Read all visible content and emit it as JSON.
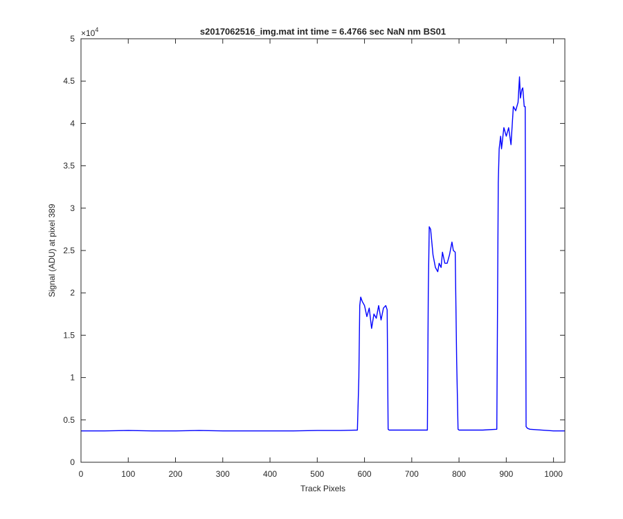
{
  "chart_data": {
    "type": "line",
    "title": "s2017062516_img.mat int time = 6.4766 sec  NaN nm BS01",
    "xlabel": "Track Pixels",
    "ylabel": "Signal (ADU) at pixel 389",
    "xlim": [
      0,
      1024
    ],
    "ylim": [
      0,
      50000
    ],
    "xticks": [
      0,
      100,
      200,
      300,
      400,
      500,
      600,
      700,
      800,
      900,
      1000
    ],
    "yticks": [
      0,
      5000,
      10000,
      15000,
      20000,
      25000,
      30000,
      35000,
      40000,
      45000,
      50000
    ],
    "ytick_labels": [
      "0",
      "0.5",
      "1",
      "1.5",
      "2",
      "2.5",
      "3",
      "3.5",
      "4",
      "4.5",
      "5"
    ],
    "y_exponent_base": "×10",
    "y_exponent_power": "4",
    "grid": false,
    "line_color": "#0000ff",
    "series": [
      {
        "x": [
          0,
          50,
          100,
          150,
          200,
          250,
          300,
          350,
          400,
          450,
          500,
          550,
          585,
          588,
          590,
          592,
          595,
          600,
          605,
          610,
          615,
          620,
          625,
          630,
          635,
          640,
          645,
          648,
          650,
          652,
          655,
          660,
          700,
          733,
          735,
          737,
          740,
          745,
          750,
          755,
          758,
          762,
          765,
          770,
          775,
          780,
          785,
          788,
          792,
          795,
          798,
          800,
          850,
          880,
          883,
          885,
          888,
          890,
          895,
          900,
          905,
          910,
          915,
          920,
          925,
          928,
          930,
          933,
          935,
          938,
          940,
          942,
          945,
          950,
          1000,
          1024
        ],
        "y": [
          3700,
          3700,
          3750,
          3700,
          3700,
          3750,
          3700,
          3700,
          3700,
          3700,
          3750,
          3750,
          3800,
          10000,
          18500,
          19500,
          19000,
          18500,
          17200,
          18200,
          15800,
          17500,
          17000,
          18500,
          16800,
          18200,
          18500,
          18000,
          3900,
          3800,
          3800,
          3800,
          3800,
          3800,
          20000,
          27800,
          27500,
          24500,
          23000,
          22500,
          23500,
          23000,
          24800,
          23500,
          23500,
          24500,
          26000,
          25000,
          24800,
          12000,
          3900,
          3800,
          3800,
          3900,
          33000,
          37000,
          38500,
          37000,
          39500,
          38500,
          39500,
          37500,
          42000,
          41500,
          42500,
          45500,
          43000,
          44000,
          44200,
          42000,
          42000,
          4200,
          4000,
          3900,
          3700,
          3700
        ]
      }
    ]
  }
}
